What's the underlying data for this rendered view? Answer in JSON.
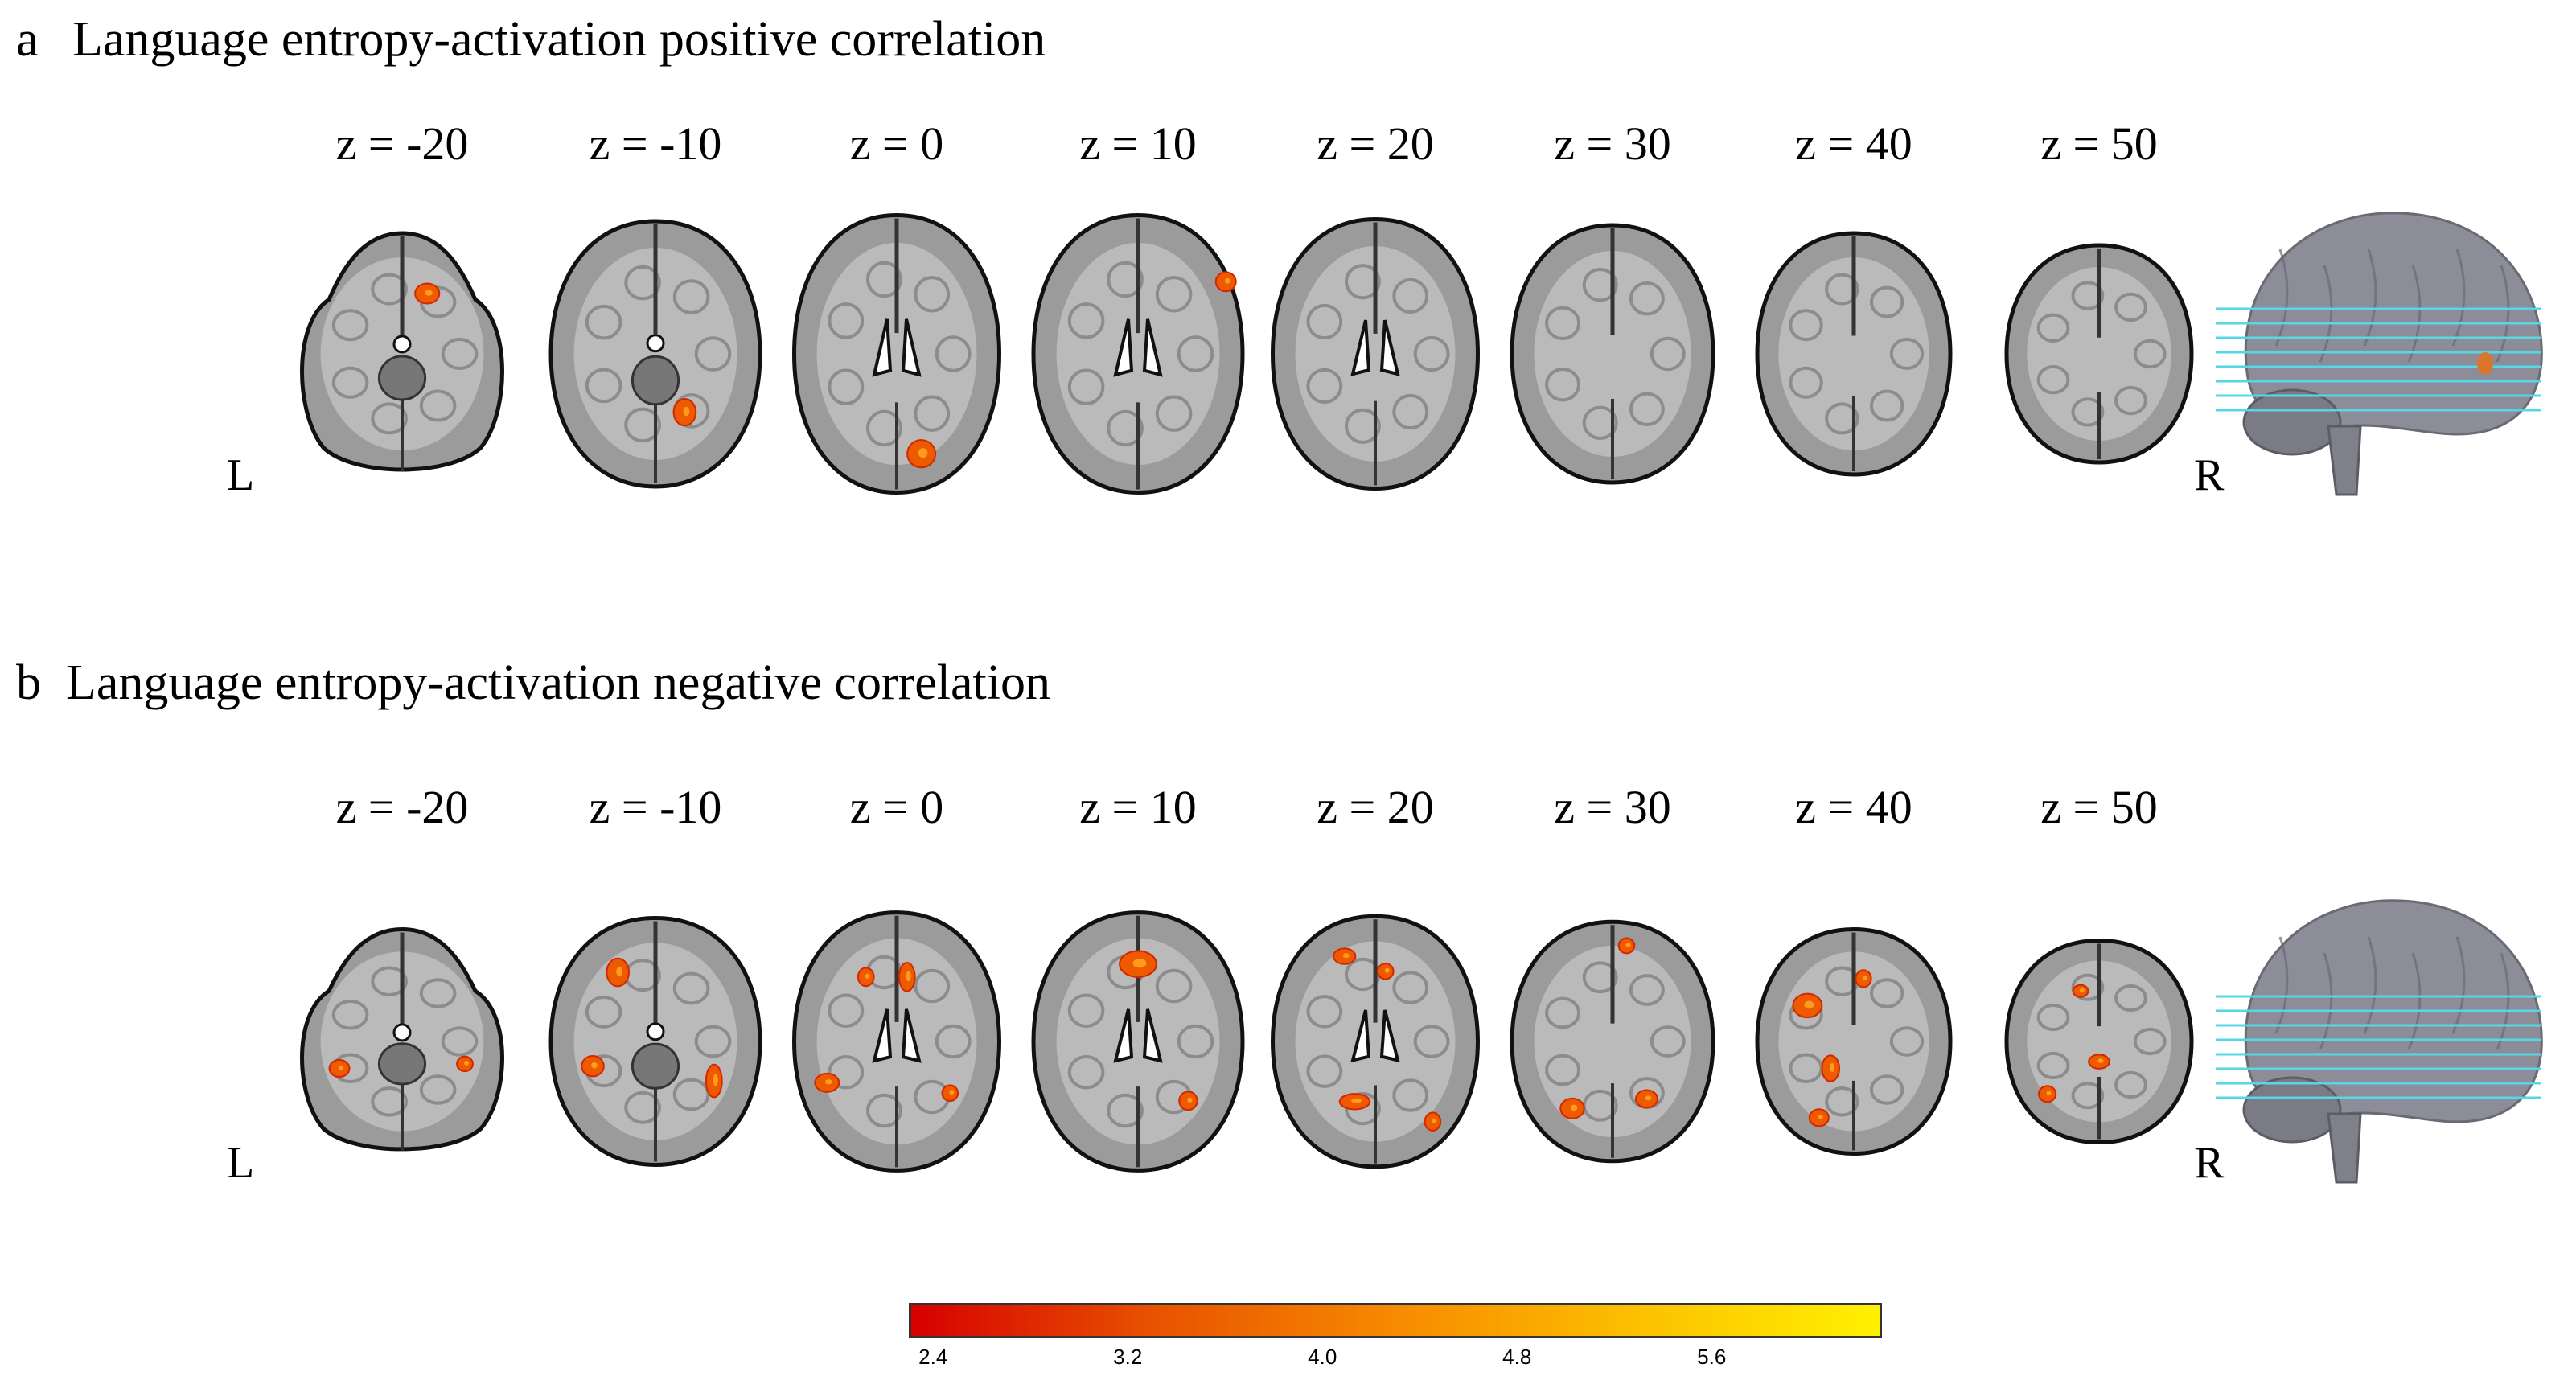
{
  "panels": [
    {
      "letter": "a",
      "title": "Language entropy-activation positive correlation",
      "slices": [
        {
          "label": "z = -20",
          "z": -20,
          "blobs": [
            [
              0.62,
              0.25,
              0.07,
              0.05
            ]
          ]
        },
        {
          "label": "z = -10",
          "z": -10,
          "blobs": [
            [
              0.64,
              0.72,
              0.06,
              0.07
            ]
          ]
        },
        {
          "label": "z = 0",
          "z": 0,
          "blobs": [
            [
              0.62,
              0.86,
              0.09,
              0.07
            ]
          ]
        },
        {
          "label": "z = 10",
          "z": 10,
          "blobs": [
            [
              0.92,
              0.24,
              0.05,
              0.04
            ]
          ]
        },
        {
          "label": "z = 20",
          "z": 20,
          "blobs": []
        },
        {
          "label": "z = 30",
          "z": 30,
          "blobs": []
        },
        {
          "label": "z = 40",
          "z": 40,
          "blobs": []
        },
        {
          "label": "z = 50",
          "z": 50,
          "blobs": []
        }
      ],
      "side_left": "L",
      "side_right": "R"
    },
    {
      "letter": "b",
      "title": "Language entropy-activation negative correlation",
      "slices": [
        {
          "label": "z = -20",
          "z": -20,
          "blobs": [
            [
              0.2,
              0.62,
              0.05,
              0.04
            ],
            [
              0.8,
              0.6,
              0.03,
              0.03
            ]
          ]
        },
        {
          "label": "z = -10",
          "z": -10,
          "blobs": [
            [
              0.32,
              0.22,
              0.06,
              0.08
            ],
            [
              0.2,
              0.6,
              0.06,
              0.05
            ],
            [
              0.78,
              0.66,
              0.03,
              0.1
            ]
          ]
        },
        {
          "label": "z = 0",
          "z": 0,
          "blobs": [
            [
              0.35,
              0.25,
              0.03,
              0.04
            ],
            [
              0.55,
              0.25,
              0.03,
              0.08
            ],
            [
              0.16,
              0.66,
              0.07,
              0.04
            ],
            [
              0.76,
              0.7,
              0.03,
              0.03
            ]
          ]
        },
        {
          "label": "z = 10",
          "z": 10,
          "blobs": [
            [
              0.5,
              0.2,
              0.13,
              0.07
            ],
            [
              0.74,
              0.73,
              0.04,
              0.04
            ]
          ]
        },
        {
          "label": "z = 20",
          "z": 20,
          "blobs": [
            [
              0.35,
              0.16,
              0.06,
              0.03
            ],
            [
              0.55,
              0.22,
              0.03,
              0.03
            ],
            [
              0.4,
              0.74,
              0.1,
              0.03
            ],
            [
              0.78,
              0.82,
              0.03,
              0.04
            ]
          ]
        },
        {
          "label": "z = 30",
          "z": 30,
          "blobs": [
            [
              0.3,
              0.78,
              0.07,
              0.05
            ],
            [
              0.67,
              0.74,
              0.06,
              0.04
            ],
            [
              0.57,
              0.1,
              0.03,
              0.03
            ]
          ]
        },
        {
          "label": "z = 40",
          "z": 40,
          "blobs": [
            [
              0.26,
              0.34,
              0.1,
              0.07
            ],
            [
              0.55,
              0.22,
              0.03,
              0.04
            ],
            [
              0.38,
              0.62,
              0.04,
              0.08
            ],
            [
              0.32,
              0.84,
              0.05,
              0.04
            ]
          ]
        },
        {
          "label": "z = 50",
          "z": 50,
          "blobs": [
            [
              0.5,
              0.6,
              0.06,
              0.03
            ],
            [
              0.22,
              0.76,
              0.04,
              0.04
            ],
            [
              0.4,
              0.25,
              0.03,
              0.02
            ]
          ]
        }
      ],
      "side_left": "L",
      "side_right": "R"
    }
  ],
  "colorbar": {
    "ticks": [
      "2.4",
      "3.2",
      "4.0",
      "4.8",
      "5.6"
    ],
    "tick_values": [
      2.4,
      3.2,
      4.0,
      4.8,
      5.6
    ],
    "range": [
      2.3,
      6.3
    ],
    "colors": [
      "#d60000",
      "#e85200",
      "#f78a00",
      "#fcc000",
      "#fff100"
    ]
  },
  "colors": {
    "brain_fill": "#9b9b9b",
    "brain_dark": "#555555",
    "brain_edge": "#111111",
    "slice_lines": "#55d8e6"
  }
}
